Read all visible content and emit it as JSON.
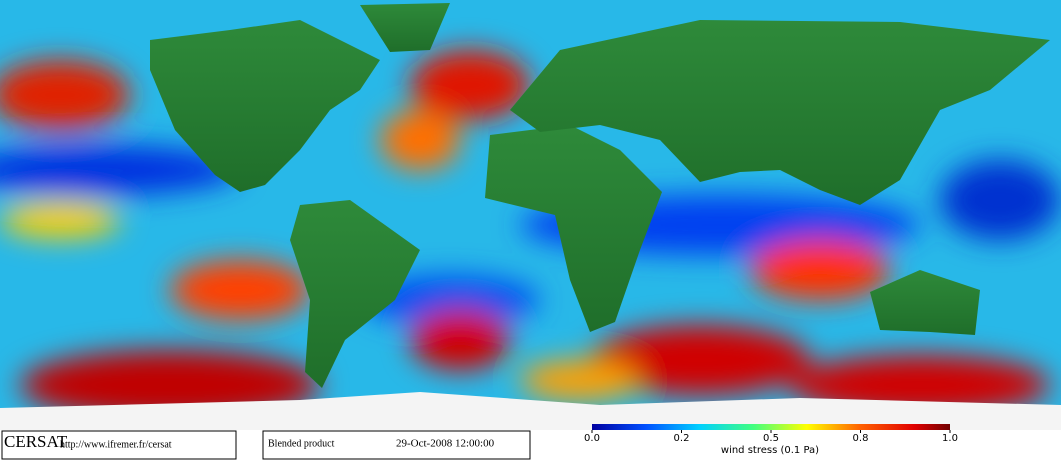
{
  "header": {
    "logo": "CERSAT",
    "url": "http://www.ifremer.fr/cersat"
  },
  "product": {
    "name": "Blended product",
    "date": "29-Oct-2008 12:00:00"
  },
  "colorbar": {
    "ticks": [
      {
        "value": 0,
        "label": "0.0"
      },
      0.2,
      0.5,
      0.8,
      {
        "value": 1,
        "label": "1.0"
      }
    ],
    "label": "wind stress (0.1 Pa)"
  }
}
